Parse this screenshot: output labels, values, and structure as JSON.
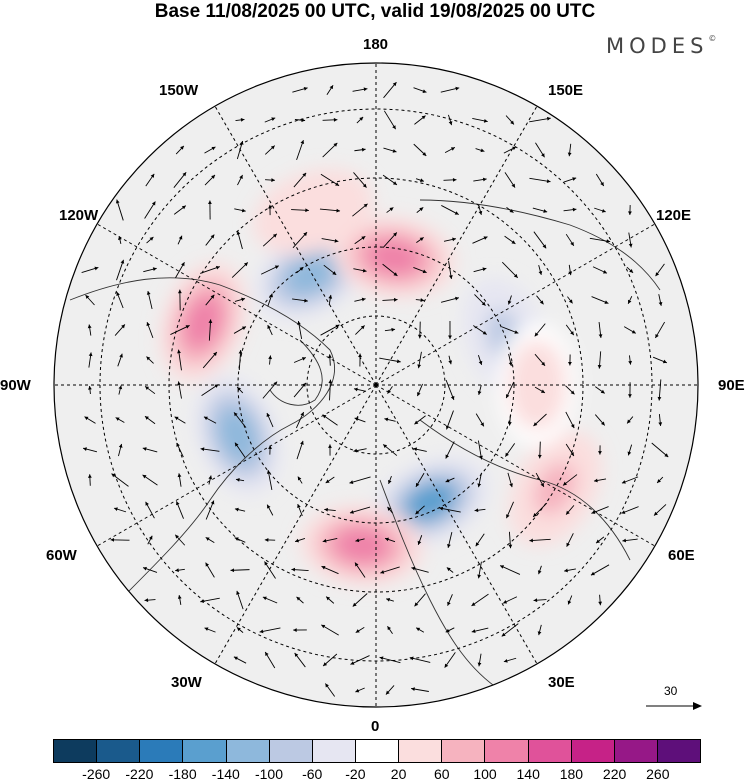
{
  "title": "Base 11/08/2025 00 UTC, valid 19/08/2025 00 UTC",
  "logo": {
    "text": "MODES",
    "mark": "©"
  },
  "longitude_labels": {
    "top": "180",
    "bottom": "0",
    "left": "90W",
    "right": "90E",
    "upper_left_1": "150W",
    "upper_left_2": "120W",
    "upper_right_1": "150E",
    "upper_right_2": "120E",
    "lower_left_1": "60W",
    "lower_left_2": "30W",
    "lower_right_1": "60E",
    "lower_right_2": "30E"
  },
  "reference_vector": {
    "label": "30"
  },
  "colorbar": {
    "colors": [
      "#0d3b5e",
      "#1a5a8c",
      "#2b7bb9",
      "#5a9fcf",
      "#8eb8dc",
      "#bcc9e3",
      "#e6e6f2",
      "#ffffff",
      "#fbdede",
      "#f6b3bf",
      "#ef82a9",
      "#e0529a",
      "#c62287",
      "#961887",
      "#5e0f7a"
    ],
    "ticks": [
      "-260",
      "-220",
      "-180",
      "-140",
      "-100",
      "-60",
      "-20",
      "20",
      "60",
      "100",
      "140",
      "180",
      "220",
      "260"
    ]
  },
  "anomaly_blobs": [
    {
      "lon": -150,
      "lat": 62,
      "value": -120
    },
    {
      "lon": 172,
      "lat": 62,
      "value": 130
    },
    {
      "lon": -110,
      "lat": 50,
      "value": 110
    },
    {
      "lon": -70,
      "lat": 58,
      "value": -110
    },
    {
      "lon": 25,
      "lat": 62,
      "value": -140
    },
    {
      "lon": -5,
      "lat": 55,
      "value": 140
    },
    {
      "lon": 60,
      "lat": 45,
      "value": 90
    },
    {
      "lon": 110,
      "lat": 60,
      "value": -60
    },
    {
      "lon": -160,
      "lat": 50,
      "value": 60
    },
    {
      "lon": 90,
      "lat": 55,
      "value": 40
    }
  ]
}
